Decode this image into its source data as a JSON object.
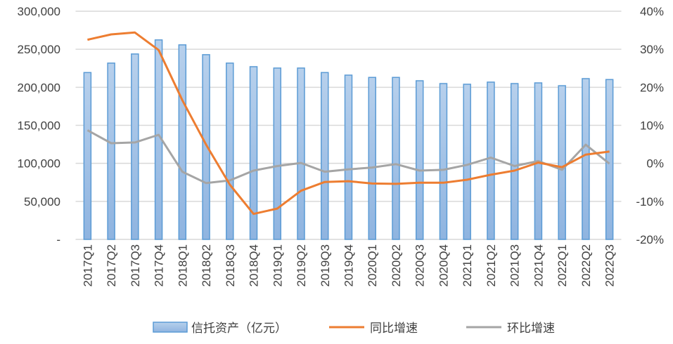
{
  "chart_data": {
    "type": "bar+line",
    "categories": [
      "2017Q1",
      "2017Q2",
      "2017Q3",
      "2017Q4",
      "2018Q1",
      "2018Q2",
      "2018Q3",
      "2018Q4",
      "2019Q1",
      "2019Q2",
      "2019Q3",
      "2019Q4",
      "2020Q1",
      "2020Q2",
      "2020Q3",
      "2020Q4",
      "2021Q1",
      "2021Q2",
      "2021Q3",
      "2021Q4",
      "2022Q1",
      "2022Q2",
      "2022Q3"
    ],
    "series": [
      {
        "name": "信托资产（亿元）",
        "type": "bar",
        "axis": "left",
        "color": "#5b9bd5",
        "values": [
          219400,
          231800,
          243800,
          262300,
          255800,
          242900,
          231800,
          227100,
          225300,
          225300,
          219400,
          216000,
          213000,
          213000,
          208600,
          204900,
          204000,
          206800,
          204900,
          205800,
          202100,
          211400,
          210200
        ]
      },
      {
        "name": "同比增速",
        "type": "line",
        "axis": "right",
        "color": "#ed7d31",
        "values": [
          32.5,
          33.9,
          34.4,
          29.8,
          16.6,
          4.9,
          -5.6,
          -13.3,
          -11.9,
          -7.2,
          -4.9,
          -4.7,
          -5.3,
          -5.4,
          -5.1,
          -5.1,
          -4.3,
          -3.0,
          -1.9,
          0.2,
          -1.0,
          2.3,
          3.1
        ]
      },
      {
        "name": "环比增速",
        "type": "line",
        "axis": "right",
        "color": "#a5a5a5",
        "values": [
          8.7,
          5.3,
          5.5,
          7.5,
          -2.2,
          -5.2,
          -4.5,
          -1.9,
          -0.7,
          0.1,
          -2.2,
          -1.6,
          -1.1,
          -0.2,
          -1.9,
          -1.7,
          -0.4,
          1.5,
          -0.7,
          0.6,
          -1.7,
          4.9,
          -0.1
        ]
      }
    ],
    "y_left": {
      "range": [
        0,
        300000
      ],
      "ticks": [
        "-",
        "50,000",
        "100,000",
        "150,000",
        "200,000",
        "250,000",
        "300,000"
      ]
    },
    "y_right": {
      "range": [
        -20,
        40
      ],
      "unit": "%",
      "ticks": [
        "-20%",
        "-10%",
        "0%",
        "10%",
        "20%",
        "30%",
        "40%"
      ]
    },
    "grid": true,
    "legend": "bottom"
  }
}
